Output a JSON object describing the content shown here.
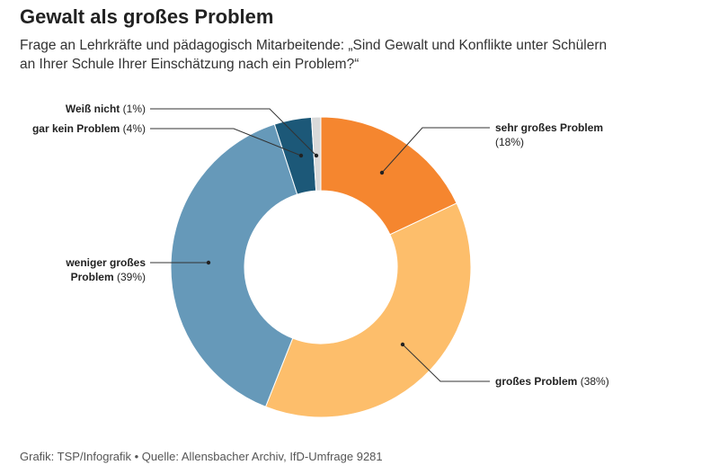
{
  "chart_data": {
    "type": "donut",
    "title": "Gewalt als großes Problem",
    "subtitle": "Frage an Lehrkräfte und pädagogisch Mitarbeitende: „Sind Gewalt und Konflikte unter Schülern an Ihrer Schule Ihrer Einschätzung nach ein Problem?“",
    "categories": [
      "sehr großes Problem",
      "großes Problem",
      "weniger großes Problem",
      "gar kein Problem",
      "Weiß nicht"
    ],
    "values": [
      18,
      38,
      39,
      4,
      1
    ],
    "value_labels": [
      "(18%)",
      "(38%)",
      "(39%)",
      "(4%)",
      "(1%)"
    ],
    "colors": [
      "#f5862f",
      "#fdbe6b",
      "#6699b9",
      "#1c5878",
      "#d9d9d9"
    ],
    "source": "Grafik: TSP/Infografik • Quelle: Allensbacher Archiv, IfD-Umfrage 9281"
  }
}
